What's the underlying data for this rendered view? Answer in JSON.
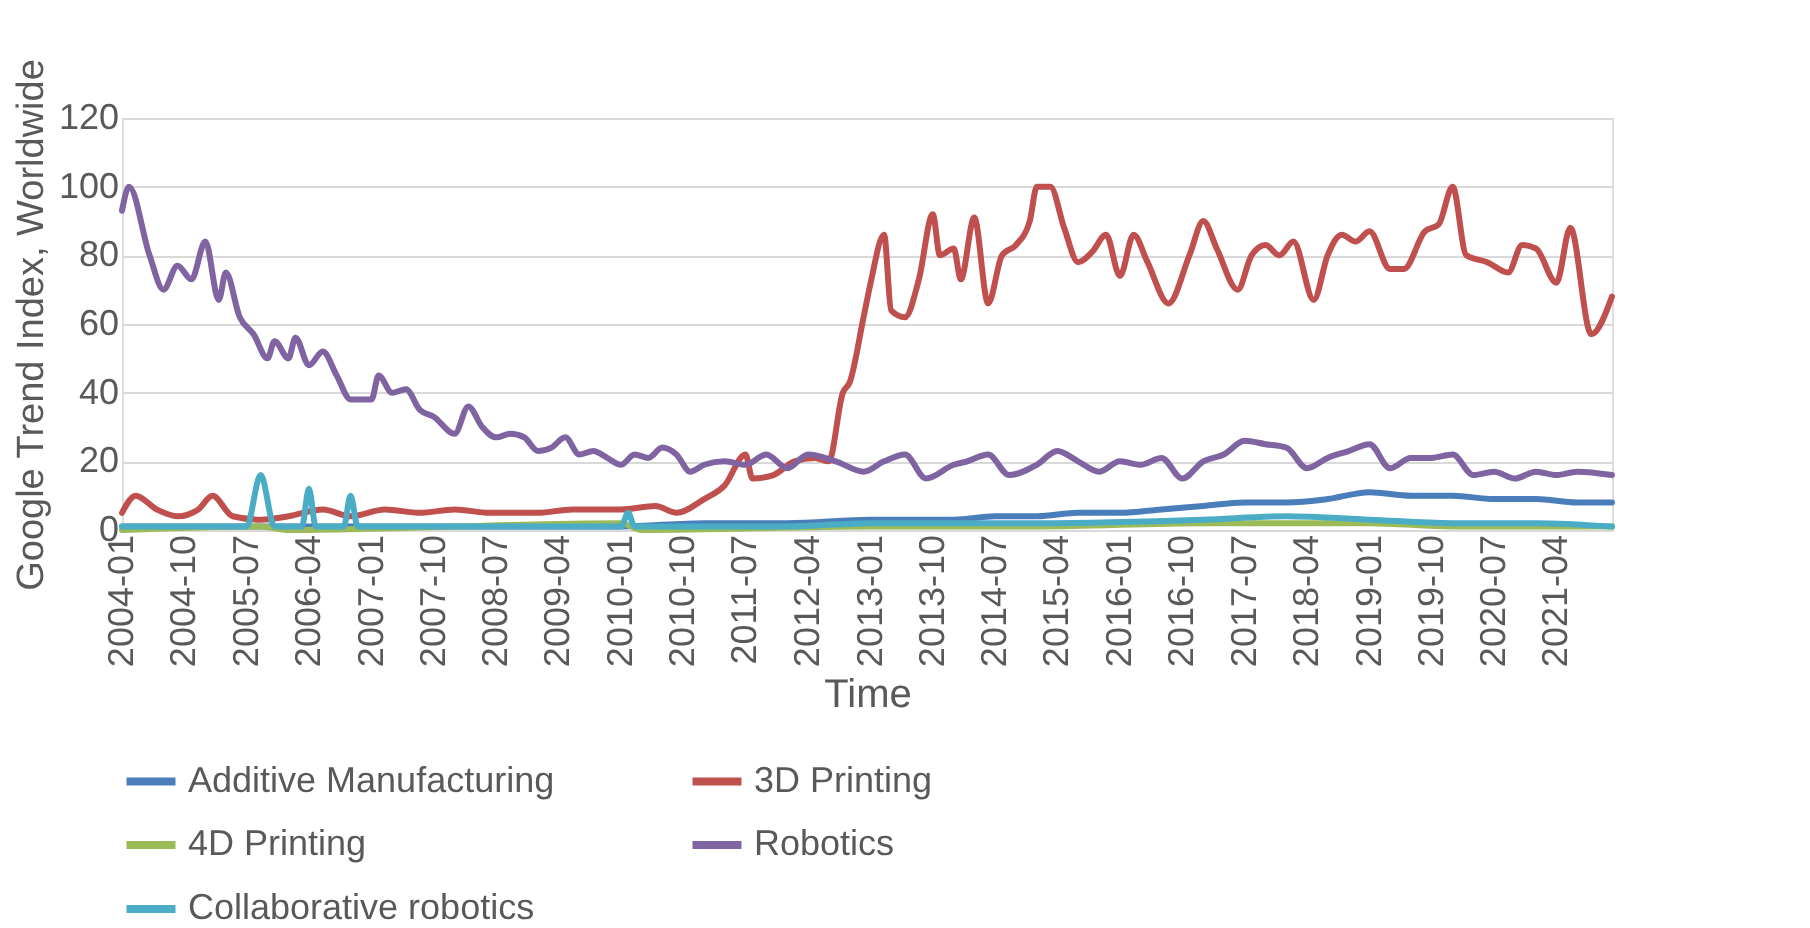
{
  "chart_data": {
    "type": "line",
    "xlabel": "Time",
    "ylabel": "Google Trend Index, Worldwide",
    "xlim": [
      "2004-01",
      "2021-12"
    ],
    "xticks": [
      "2004-01",
      "2004-10",
      "2005-07",
      "2006-04",
      "2007-01",
      "2007-10",
      "2008-07",
      "2009-04",
      "2010-01",
      "2010-10",
      "2011-07",
      "2012-04",
      "2013-01",
      "2013-10",
      "2014-07",
      "2015-04",
      "2016-01",
      "2016-10",
      "2017-07",
      "2018-04",
      "2019-01",
      "2019-10",
      "2020-07",
      "2021-04"
    ],
    "ylim": [
      0,
      120
    ],
    "yticks": [
      0,
      20,
      40,
      60,
      80,
      100,
      120
    ],
    "grid": "y",
    "legend": "bottom",
    "marker": "none",
    "line_style": "solid",
    "series": [
      {
        "name": "Additive Manufacturing",
        "color": "#4a7ebb",
        "x": [
          "2004-01",
          "2006-01",
          "2008-01",
          "2010-01",
          "2011-01",
          "2012-01",
          "2013-01",
          "2013-07",
          "2014-01",
          "2014-07",
          "2015-01",
          "2015-07",
          "2016-01",
          "2016-07",
          "2017-01",
          "2017-07",
          "2018-01",
          "2018-07",
          "2019-01",
          "2019-07",
          "2020-01",
          "2020-07",
          "2021-01",
          "2021-07",
          "2021-12"
        ],
        "values": [
          1,
          1,
          1,
          1,
          2,
          2,
          3,
          3,
          3,
          4,
          4,
          5,
          5,
          6,
          7,
          8,
          8,
          9,
          11,
          10,
          10,
          9,
          9,
          8,
          8
        ]
      },
      {
        "name": "3D Printing",
        "color": "#c0504d",
        "x": [
          "2004-01",
          "2004-03",
          "2004-06",
          "2004-09",
          "2004-12",
          "2005-02",
          "2005-05",
          "2005-09",
          "2006-01",
          "2006-06",
          "2006-10",
          "2007-03",
          "2007-08",
          "2008-01",
          "2008-06",
          "2009-01",
          "2009-06",
          "2010-01",
          "2010-06",
          "2010-09",
          "2011-01",
          "2011-04",
          "2011-07",
          "2011-08",
          "2011-11",
          "2012-02",
          "2012-05",
          "2012-07",
          "2012-09",
          "2012-10",
          "2012-12",
          "2013-01",
          "2013-03",
          "2013-04",
          "2013-06",
          "2013-08",
          "2013-10",
          "2013-11",
          "2014-01",
          "2014-02",
          "2014-04",
          "2014-06",
          "2014-08",
          "2014-10",
          "2014-12",
          "2015-01",
          "2015-03",
          "2015-05",
          "2015-07",
          "2015-09",
          "2015-11",
          "2016-01",
          "2016-03",
          "2016-05",
          "2016-08",
          "2016-11",
          "2017-01",
          "2017-03",
          "2017-06",
          "2017-08",
          "2017-10",
          "2017-12",
          "2018-02",
          "2018-05",
          "2018-07",
          "2018-09",
          "2018-11",
          "2019-01",
          "2019-04",
          "2019-06",
          "2019-09",
          "2019-11",
          "2020-01",
          "2020-03",
          "2020-06",
          "2020-09",
          "2020-11",
          "2021-01",
          "2021-04",
          "2021-06",
          "2021-09",
          "2021-12"
        ],
        "values": [
          5,
          10,
          6,
          4,
          6,
          10,
          4,
          3,
          4,
          6,
          4,
          6,
          5,
          6,
          5,
          5,
          6,
          6,
          7,
          5,
          9,
          13,
          22,
          15,
          16,
          20,
          21,
          20,
          40,
          43,
          62,
          72,
          86,
          64,
          62,
          73,
          92,
          80,
          82,
          73,
          91,
          66,
          80,
          83,
          90,
          100,
          100,
          88,
          78,
          81,
          86,
          74,
          86,
          78,
          66,
          80,
          90,
          82,
          70,
          80,
          83,
          80,
          84,
          67,
          80,
          86,
          84,
          87,
          76,
          76,
          87,
          89,
          100,
          80,
          78,
          75,
          83,
          82,
          72,
          88,
          57,
          68
        ]
      },
      {
        "name": "4D Printing",
        "color": "#9bbb59",
        "x": [
          "2004-01",
          "2005-09",
          "2006-01",
          "2010-01",
          "2010-04",
          "2013-01",
          "2015-01",
          "2017-01",
          "2018-01",
          "2019-01",
          "2020-01",
          "2021-01",
          "2021-12"
        ],
        "values": [
          0,
          1,
          0,
          2,
          0,
          1,
          1,
          2,
          2,
          2,
          1,
          1,
          1
        ]
      },
      {
        "name": "Robotics",
        "color": "#8064a2",
        "x": [
          "2004-01",
          "2004-02",
          "2004-05",
          "2004-07",
          "2004-09",
          "2004-11",
          "2005-01",
          "2005-03",
          "2005-04",
          "2005-06",
          "2005-08",
          "2005-10",
          "2005-11",
          "2006-01",
          "2006-02",
          "2006-04",
          "2006-06",
          "2006-08",
          "2006-10",
          "2007-01",
          "2007-02",
          "2007-04",
          "2007-06",
          "2007-08",
          "2007-10",
          "2008-01",
          "2008-03",
          "2008-05",
          "2008-07",
          "2008-09",
          "2008-11",
          "2009-01",
          "2009-03",
          "2009-05",
          "2009-07",
          "2009-09",
          "2009-11",
          "2010-01",
          "2010-03",
          "2010-05",
          "2010-07",
          "2010-09",
          "2010-11",
          "2011-01",
          "2011-04",
          "2011-07",
          "2011-10",
          "2012-01",
          "2012-04",
          "2012-08",
          "2012-12",
          "2013-03",
          "2013-06",
          "2013-09",
          "2014-01",
          "2014-03",
          "2014-06",
          "2014-09",
          "2015-01",
          "2015-04",
          "2015-07",
          "2015-10",
          "2016-01",
          "2016-04",
          "2016-07",
          "2016-10",
          "2017-01",
          "2017-04",
          "2017-07",
          "2017-10",
          "2018-01",
          "2018-04",
          "2018-07",
          "2018-10",
          "2019-01",
          "2019-04",
          "2019-07",
          "2019-10",
          "2020-01",
          "2020-04",
          "2020-07",
          "2020-10",
          "2021-01",
          "2021-04",
          "2021-07",
          "2021-12"
        ],
        "values": [
          93,
          100,
          80,
          70,
          77,
          73,
          84,
          67,
          75,
          62,
          57,
          50,
          55,
          50,
          56,
          48,
          52,
          45,
          38,
          38,
          45,
          40,
          41,
          35,
          33,
          28,
          36,
          30,
          27,
          28,
          27,
          23,
          24,
          27,
          22,
          23,
          21,
          19,
          22,
          21,
          24,
          22,
          17,
          19,
          20,
          19,
          22,
          18,
          22,
          20,
          17,
          20,
          22,
          15,
          19,
          20,
          22,
          16,
          19,
          23,
          20,
          17,
          20,
          19,
          21,
          15,
          20,
          22,
          26,
          25,
          24,
          18,
          21,
          23,
          25,
          18,
          21,
          21,
          22,
          16,
          17,
          15,
          17,
          16,
          17,
          16
        ]
      },
      {
        "name": "Collaborative robotics",
        "color": "#4bacc6",
        "x": [
          "2004-01",
          "2005-07",
          "2005-09",
          "2005-11",
          "2006-03",
          "2006-04",
          "2006-05",
          "2006-09",
          "2006-10",
          "2006-11",
          "2008-01",
          "2010-01",
          "2010-02",
          "2010-03",
          "2012-01",
          "2013-01",
          "2015-01",
          "2017-01",
          "2018-01",
          "2019-01",
          "2020-01",
          "2021-01",
          "2021-12"
        ],
        "values": [
          1,
          1,
          16,
          1,
          1,
          12,
          1,
          1,
          10,
          1,
          1,
          1,
          5,
          1,
          1,
          2,
          2,
          3,
          4,
          3,
          2,
          2,
          1
        ]
      }
    ]
  }
}
